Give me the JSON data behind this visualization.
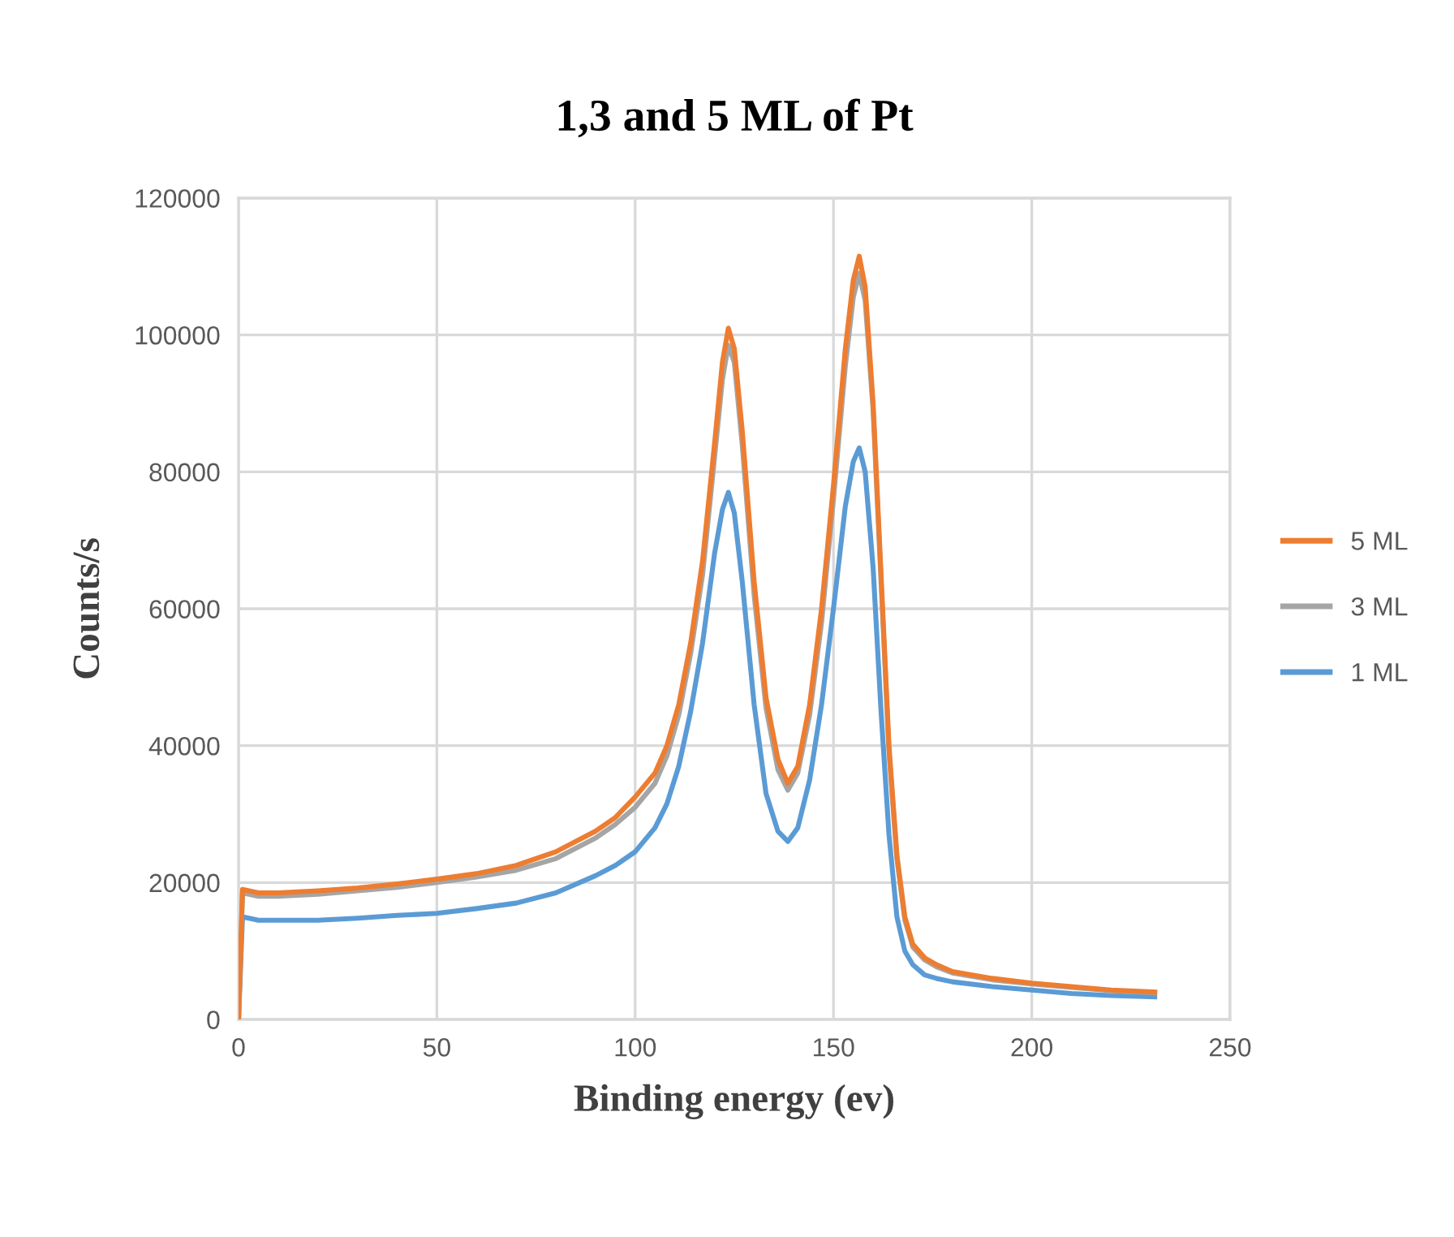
{
  "chart_data": {
    "type": "line",
    "title": "1,3 and 5 ML of Pt",
    "xlabel": "Binding energy (ev)",
    "ylabel": "Counts/s",
    "x": [
      0,
      1,
      5,
      10,
      20,
      30,
      40,
      50,
      60,
      70,
      80,
      90,
      95,
      100,
      105,
      108,
      111,
      114,
      117,
      120,
      122,
      123.5,
      125,
      127,
      130,
      133,
      136,
      138.5,
      141,
      144,
      147,
      150,
      153,
      155,
      156.5,
      158,
      160,
      162,
      164,
      166,
      168,
      170,
      173,
      176,
      180,
      190,
      200,
      210,
      220,
      231
    ],
    "series": [
      {
        "name": "5 ML",
        "color": "#ed7d31",
        "values": [
          0,
          19000,
          18500,
          18500,
          18800,
          19200,
          19800,
          20500,
          21300,
          22500,
          24500,
          27500,
          29500,
          32500,
          36000,
          40000,
          46000,
          55000,
          67000,
          84000,
          96000,
          101000,
          98000,
          86000,
          64000,
          47000,
          38000,
          34500,
          37000,
          46000,
          60000,
          78000,
          98000,
          108000,
          111500,
          107000,
          90000,
          65000,
          40000,
          24000,
          15000,
          11000,
          9000,
          8000,
          7000,
          6000,
          5300,
          4800,
          4300,
          4000
        ]
      },
      {
        "name": "3 ML",
        "color": "#a5a5a5",
        "values": [
          0,
          18500,
          18000,
          18000,
          18300,
          18800,
          19300,
          20000,
          20800,
          21800,
          23500,
          26500,
          28500,
          31000,
          34500,
          38500,
          44500,
          53500,
          65000,
          82000,
          93500,
          98500,
          96000,
          84000,
          62000,
          45500,
          36500,
          33500,
          36000,
          44500,
          58000,
          76000,
          95500,
          105500,
          109000,
          105000,
          89000,
          64000,
          39000,
          23500,
          14500,
          10600,
          8700,
          7700,
          6800,
          5800,
          5200,
          4700,
          4200,
          3900
        ]
      },
      {
        "name": "1 ML",
        "color": "#5b9bd5",
        "values": [
          0,
          15000,
          14500,
          14500,
          14500,
          14800,
          15200,
          15500,
          16200,
          17000,
          18500,
          21000,
          22500,
          24500,
          28000,
          31500,
          37000,
          45000,
          55000,
          68000,
          74500,
          77000,
          74000,
          64000,
          46000,
          33000,
          27500,
          26000,
          28000,
          35000,
          46000,
          60000,
          75000,
          81500,
          83500,
          80000,
          66000,
          45000,
          27000,
          15000,
          10000,
          8000,
          6500,
          6000,
          5500,
          4800,
          4300,
          3800,
          3500,
          3300
        ]
      }
    ],
    "xlim": [
      0,
      250
    ],
    "xticks": [
      0,
      50,
      100,
      150,
      200,
      250
    ],
    "ylim": [
      0,
      120000
    ],
    "yticks": [
      0,
      20000,
      40000,
      60000,
      80000,
      100000,
      120000
    ],
    "grid": true,
    "legend": "right",
    "marker": "none",
    "line_style": "solid"
  }
}
